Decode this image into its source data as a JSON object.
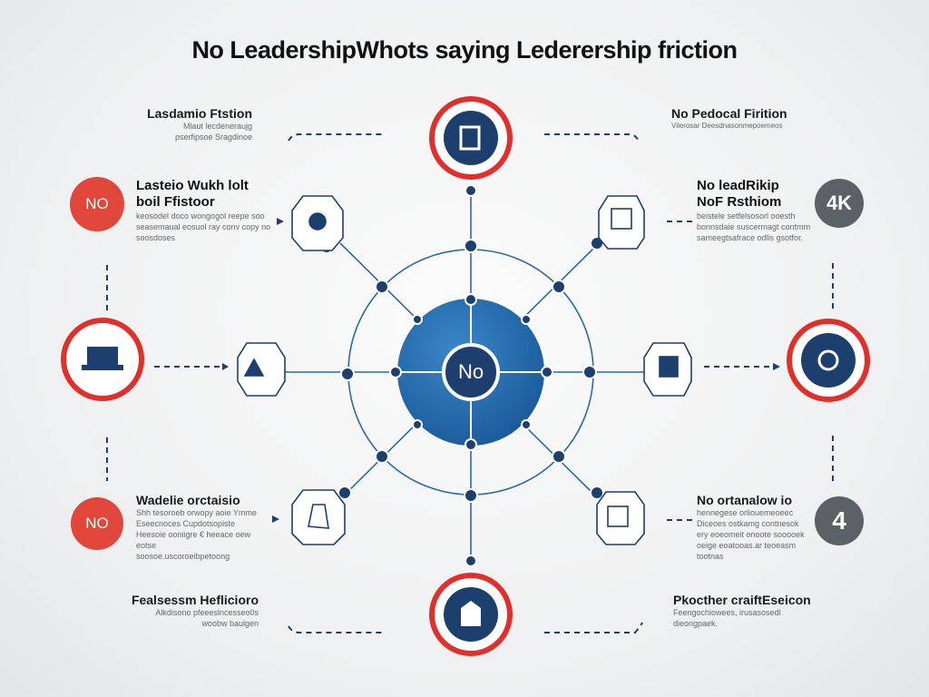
{
  "title": "No LeadershipWhots saying Lederership friction",
  "center": {
    "label": "No"
  },
  "colors": {
    "blue": "#1f5f9f",
    "navy": "#1c3f6e",
    "red": "#e0302c",
    "gray": "#5b6166",
    "cyan": "#2a9fc4"
  },
  "blocks": {
    "top_left": {
      "heading": "Lasdamio Ftstion",
      "lines": [
        "Mlaut lecdeneraujg",
        "pserfipsoe Sragdinoe"
      ]
    },
    "top_right": {
      "heading": "No Pedocal Firition",
      "lines": [
        "Vilerosar Deesdnasonmepoemeos"
      ]
    },
    "mid_left": {
      "heading": "Lasteio Wukh lolt",
      "heading2": "boil Ffistoor",
      "lines": [
        "keosodel doco wongogol reepe soo",
        "seasemaual eosuol ray conv copy no",
        "soosdoses"
      ]
    },
    "mid_right": {
      "heading": "No leadRikip",
      "heading2": "NoF Rsthiom",
      "lines": [
        "beistele setfelsosorl ooesth",
        "bonnsdaie suscermagt contmm",
        "sameegtsafrace odlis gsotfor."
      ]
    },
    "low_left": {
      "heading": "Wadelie orctaisio",
      "lines": [
        "Shh tesoroeb orwopy aoie Ymme",
        "Eseecnoces Cupdotsopiste",
        "Heesoie ooniigre € heeace oew eotse",
        "soosoe.uscoroeibpetoong"
      ]
    },
    "low_right": {
      "heading": "No ortanalow io",
      "lines": [
        "hennegese orliouemeoeec",
        "Diceoes ostkamg contnesok",
        "ery eoeomeit onoote sooooek",
        "oeige eoatooas.ar teoeasm tootnas"
      ]
    },
    "bottom_left": {
      "heading": "Fealsessm Heflicioro",
      "lines": [
        "Alkdisono pfeeeslncesseo0s",
        "woobw baulgen"
      ]
    },
    "bottom_right": {
      "heading": "Pkocther craiftEseicon",
      "lines": [
        "Feengochiowees, irusasosedl dieongpaek."
      ]
    }
  },
  "badges": {
    "no_top": "NO",
    "no_bottom": "NO",
    "gray_top": "4K",
    "gray_bottom": "4"
  },
  "icons": [
    "bar-chart-icon",
    "network-icon",
    "document-icon",
    "laptop-icon",
    "layers-icon",
    "pause-icon",
    "gear-icon",
    "hand-icon",
    "monitor-icon",
    "box-icon"
  ]
}
